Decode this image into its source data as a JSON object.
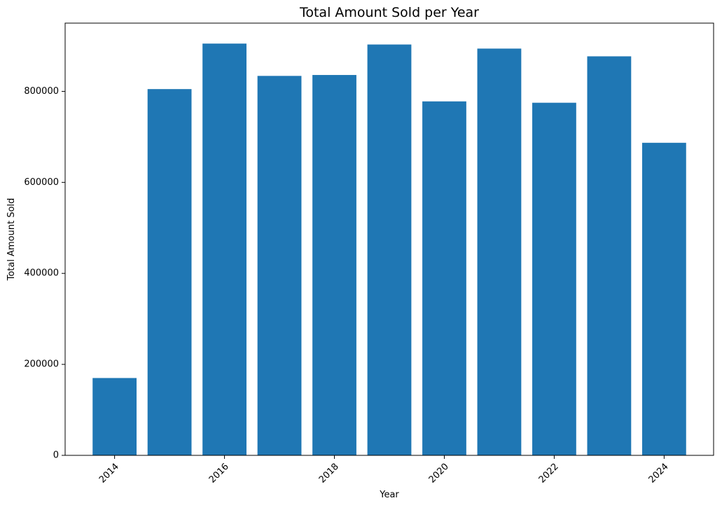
{
  "chart_data": {
    "type": "bar",
    "title": "Total Amount Sold per Year",
    "xlabel": "Year",
    "ylabel": "Total Amount Sold",
    "categories": [
      2014,
      2015,
      2016,
      2017,
      2018,
      2019,
      2020,
      2021,
      2022,
      2023,
      2024
    ],
    "values": [
      170000,
      805000,
      905000,
      834000,
      836000,
      903000,
      778000,
      894000,
      775000,
      877000,
      687000
    ],
    "xticks": [
      "2014",
      "2016",
      "2018",
      "2020",
      "2022",
      "2024"
    ],
    "yticks": [
      "0",
      "200000",
      "400000",
      "600000",
      "800000"
    ],
    "ylim": [
      0,
      950000
    ],
    "xlim": [
      2013.1,
      2024.9
    ],
    "bar_color": "#1f77b4",
    "grid": false,
    "legend": "none",
    "xtick_rotation_deg": 45
  }
}
